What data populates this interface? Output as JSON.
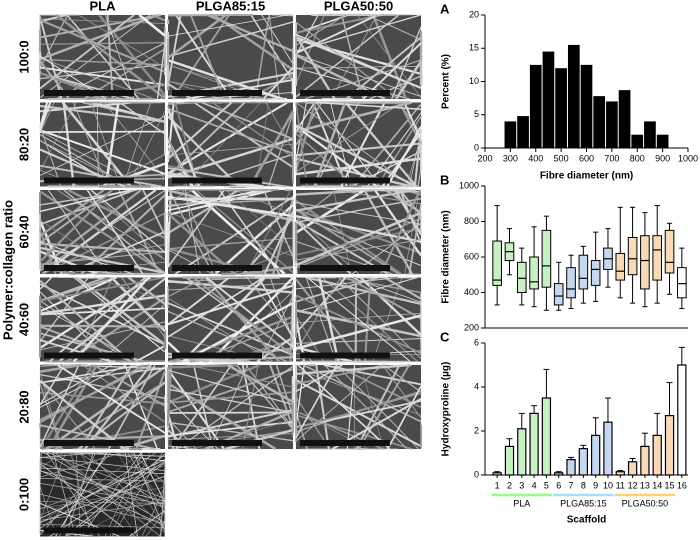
{
  "micrographs": {
    "ylabel": "Polymer:collagen ratio",
    "columns": [
      "PLA",
      "PLGA85:15",
      "PLGA50:50"
    ],
    "rows": [
      "100:0",
      "80:20",
      "60:40",
      "40:60",
      "20:80",
      "0:100"
    ]
  },
  "chart_data": [
    {
      "type": "histogram",
      "panel": "A",
      "xlabel": "Fibre diameter (nm)",
      "ylabel": "Percent (%)",
      "color": "#000000",
      "bins": [
        275,
        325,
        375,
        425,
        475,
        525,
        575,
        625,
        675,
        725,
        775,
        825,
        875,
        925
      ],
      "values": [
        4,
        4.8,
        12.5,
        14.5,
        12,
        15.5,
        12.5,
        7.8,
        7,
        8.7,
        2,
        4,
        2
      ],
      "xlim": [
        200,
        1000
      ],
      "xticks": [
        200,
        300,
        400,
        500,
        600,
        700,
        800,
        900,
        1000
      ],
      "ylim": [
        0,
        20
      ],
      "yticks": [
        0,
        5,
        10,
        15,
        20
      ]
    },
    {
      "type": "box",
      "panel": "B",
      "ylabel": "Fibre diameter (nm)",
      "ylim": [
        200,
        1000
      ],
      "yticks": [
        200,
        400,
        600,
        800,
        1000
      ],
      "series": [
        {
          "color": "#c9efc4",
          "stats": [
            [
              330,
              440,
              470,
              690,
              890
            ],
            [
              500,
              580,
              630,
              680,
              760
            ],
            [
              330,
              400,
              480,
              570,
              650
            ],
            [
              320,
              420,
              460,
              600,
              770
            ],
            [
              300,
              430,
              550,
              750,
              830
            ]
          ]
        },
        {
          "color": "#c6d8f0",
          "stats": [
            [
              300,
              330,
              380,
              450,
              570
            ],
            [
              310,
              370,
              420,
              540,
              610
            ],
            [
              340,
              420,
              480,
              610,
              660
            ],
            [
              350,
              440,
              530,
              580,
              740
            ],
            [
              430,
              530,
              590,
              650,
              760
            ]
          ]
        },
        {
          "color": "#f8d9b8",
          "stats": [
            [
              370,
              470,
              520,
              620,
              880
            ],
            [
              340,
              500,
              590,
              710,
              880
            ],
            [
              320,
              420,
              580,
              720,
              850
            ],
            [
              340,
              470,
              640,
              720,
              890
            ],
            [
              390,
              510,
              570,
              750,
              790
            ]
          ]
        },
        {
          "color": "#ffffff",
          "stats": [
            [
              310,
              370,
              450,
              540,
              650
            ]
          ]
        }
      ]
    },
    {
      "type": "bar",
      "panel": "C",
      "ylabel": "Hydroxyproline (µg)",
      "xlabel": "Scaffold",
      "ylim": [
        0,
        6
      ],
      "yticks": [
        0,
        2,
        4,
        6
      ],
      "series": [
        {
          "name": "PLA",
          "color": "#c9efc4",
          "categories": [
            "1",
            "2",
            "3",
            "4",
            "5"
          ],
          "values": [
            0.1,
            1.3,
            2.1,
            2.8,
            3.5
          ],
          "errors": [
            0.05,
            0.35,
            0.7,
            0.35,
            1.3
          ]
        },
        {
          "name": "PLGA85:15",
          "color": "#c6d8f0",
          "categories": [
            "6",
            "7",
            "8",
            "9",
            "10"
          ],
          "values": [
            0.1,
            0.7,
            1.2,
            1.8,
            2.4
          ],
          "errors": [
            0.05,
            0.1,
            0.15,
            0.8,
            1.1
          ]
        },
        {
          "name": "PLGA50:50",
          "color": "#f8d9b8",
          "categories": [
            "11",
            "12",
            "13",
            "14",
            "15"
          ],
          "values": [
            0.15,
            0.6,
            1.3,
            1.8,
            2.7
          ],
          "errors": [
            0.05,
            0.15,
            0.6,
            1.0,
            1.5
          ]
        },
        {
          "color": "#ffffff",
          "categories": [
            "16"
          ],
          "values": [
            5.0
          ],
          "errors": [
            0.8
          ]
        }
      ]
    }
  ]
}
